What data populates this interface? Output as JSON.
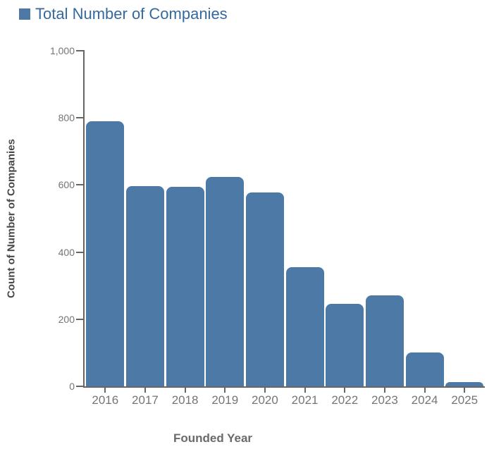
{
  "legend": {
    "label": "Total Number of Companies",
    "swatch_color": "#4d79a7"
  },
  "chart_data": {
    "type": "bar",
    "title": "Total Number of Companies",
    "categories": [
      "2016",
      "2017",
      "2018",
      "2019",
      "2020",
      "2021",
      "2022",
      "2023",
      "2024",
      "2025"
    ],
    "values": [
      790,
      597,
      595,
      625,
      577,
      355,
      245,
      270,
      100,
      13
    ],
    "xlabel": "Founded Year",
    "ylabel": "Count of Number of Companies",
    "ylim": [
      0,
      1000
    ],
    "yticks": [
      0,
      200,
      400,
      600,
      800,
      1000
    ],
    "ytick_labels": [
      "0",
      "200",
      "400",
      "600",
      "800",
      "1,000"
    ],
    "grid": false,
    "legend_position": "top-left",
    "bar_color": "#4d79a7",
    "axis_color": "#666666",
    "tick_label_color": "#757575"
  }
}
